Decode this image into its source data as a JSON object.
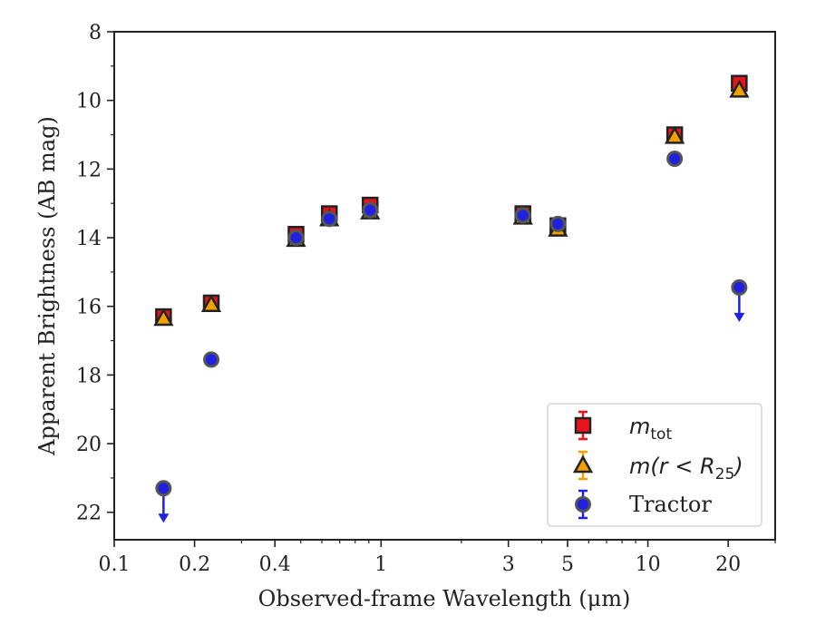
{
  "chart_data": {
    "type": "scatter",
    "title": "",
    "xlabel": "Observed-frame Wavelength (μm)",
    "ylabel": "Apparent Brightness (AB mag)",
    "xscale": "log",
    "xlim": [
      0.1,
      30
    ],
    "ylim": [
      22.8,
      8
    ],
    "y_inverted": true,
    "xticks": [
      0.1,
      0.2,
      0.4,
      1,
      3,
      5,
      10,
      20
    ],
    "xtick_labels": [
      "0.1",
      "0.2",
      "0.4",
      "1",
      "3",
      "5",
      "10",
      "20"
    ],
    "yticks": [
      8,
      10,
      12,
      14,
      16,
      18,
      20,
      22
    ],
    "ytick_labels": [
      "8",
      "10",
      "12",
      "14",
      "16",
      "18",
      "20",
      "22"
    ],
    "grid": false,
    "legend_position": "bottom-right",
    "series": [
      {
        "name": "m_tot",
        "legend_main": "m",
        "legend_sub": "tot",
        "marker": "square",
        "color": "#e8141b",
        "points": [
          {
            "x": 0.153,
            "y": 16.3
          },
          {
            "x": 0.231,
            "y": 15.9
          },
          {
            "x": 0.48,
            "y": 13.9
          },
          {
            "x": 0.64,
            "y": 13.3
          },
          {
            "x": 0.91,
            "y": 13.05
          },
          {
            "x": 3.4,
            "y": 13.3
          },
          {
            "x": 4.6,
            "y": 13.65
          },
          {
            "x": 12.6,
            "y": 11.0
          },
          {
            "x": 22.0,
            "y": 9.5
          }
        ]
      },
      {
        "name": "m(r < R25)",
        "legend_main": "m(r < R",
        "legend_sub": "25",
        "legend_tail": ")",
        "marker": "triangle",
        "color": "#f0a000",
        "points": [
          {
            "x": 0.153,
            "y": 16.35
          },
          {
            "x": 0.231,
            "y": 15.95
          },
          {
            "x": 0.48,
            "y": 14.05
          },
          {
            "x": 0.64,
            "y": 13.45
          },
          {
            "x": 0.91,
            "y": 13.25
          },
          {
            "x": 3.4,
            "y": 13.4
          },
          {
            "x": 4.6,
            "y": 13.75
          },
          {
            "x": 12.6,
            "y": 11.05
          },
          {
            "x": 22.0,
            "y": 9.7
          }
        ]
      },
      {
        "name": "Tractor",
        "marker": "circle",
        "color": "#2020e0",
        "points": [
          {
            "x": 0.153,
            "y": 21.3,
            "upper_limit": true
          },
          {
            "x": 0.231,
            "y": 17.55
          },
          {
            "x": 0.48,
            "y": 14.0
          },
          {
            "x": 0.64,
            "y": 13.45
          },
          {
            "x": 0.91,
            "y": 13.2
          },
          {
            "x": 3.4,
            "y": 13.35
          },
          {
            "x": 4.6,
            "y": 13.6
          },
          {
            "x": 12.6,
            "y": 11.7
          },
          {
            "x": 22.0,
            "y": 15.45,
            "upper_limit": true
          }
        ]
      }
    ]
  }
}
